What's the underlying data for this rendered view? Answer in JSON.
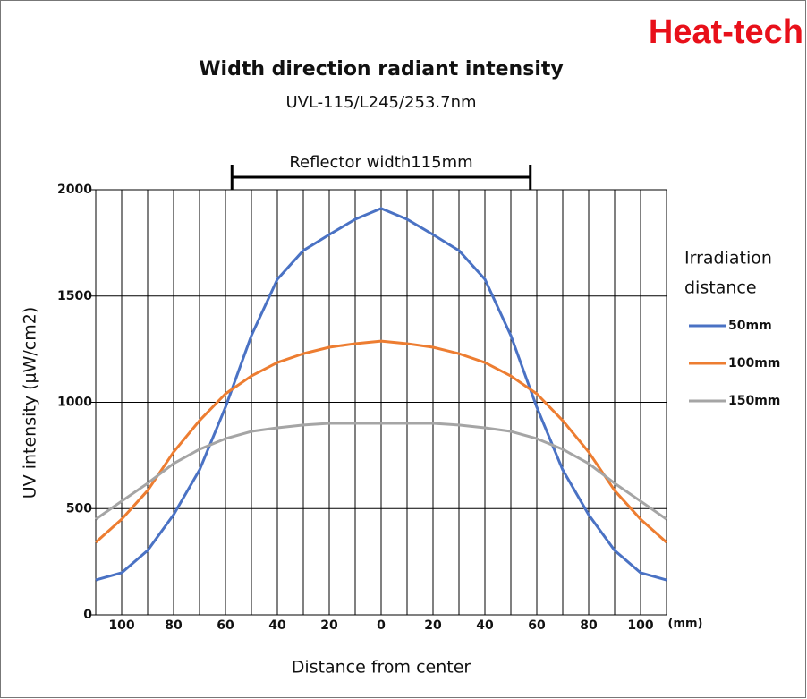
{
  "chart_data": {
    "type": "line",
    "brand": "Heat-tech",
    "title": "Width direction radiant intensity",
    "subtitle": "UVL-115/L245/253.7nm",
    "annotation": "Reflector width115mm",
    "reflector_span": [
      -57.5,
      57.5
    ],
    "x_label": "Distance from center",
    "x_unit": "(mm)",
    "y_label": "UV intensity (μW/cm2)",
    "legend_title": [
      "Irradiation",
      "distance"
    ],
    "legend": "right",
    "grid": true,
    "x": [
      -110,
      -100,
      -90,
      -80,
      -70,
      -60,
      -50,
      -40,
      -30,
      -20,
      -10,
      0,
      10,
      20,
      30,
      40,
      50,
      60,
      70,
      80,
      90,
      100,
      110
    ],
    "xlim": [
      -110,
      110
    ],
    "xticks": [
      {
        "value": -100,
        "label": "100"
      },
      {
        "value": -80,
        "label": "80"
      },
      {
        "value": -60,
        "label": "60"
      },
      {
        "value": -40,
        "label": "40"
      },
      {
        "value": -20,
        "label": "20"
      },
      0,
      20,
      40,
      60,
      80,
      100
    ],
    "xminor": [
      -90,
      -70,
      -50,
      -30,
      -10,
      10,
      30,
      50,
      70,
      90
    ],
    "ylim": [
      0,
      2000
    ],
    "yticks": [
      0,
      500,
      1000,
      1500,
      2000
    ],
    "series": [
      {
        "name": "50mm",
        "color": "#4a72c4",
        "values": [
          164,
          198,
          303,
          471,
          682,
          977,
          1314,
          1579,
          1714,
          1789,
          1861,
          1912,
          1861,
          1789,
          1714,
          1579,
          1314,
          977,
          682,
          471,
          303,
          198,
          164
        ]
      },
      {
        "name": "100mm",
        "color": "#ed7d31",
        "values": [
          341,
          450,
          585,
          766,
          914,
          1040,
          1124,
          1187,
          1229,
          1259,
          1276,
          1288,
          1276,
          1259,
          1229,
          1187,
          1124,
          1040,
          914,
          766,
          585,
          450,
          341
        ]
      },
      {
        "name": "150mm",
        "color": "#a5a5a5",
        "values": [
          450,
          535,
          619,
          712,
          779,
          829,
          863,
          880,
          893,
          901,
          901,
          901,
          901,
          901,
          893,
          880,
          863,
          829,
          779,
          712,
          619,
          535,
          450
        ]
      }
    ]
  }
}
